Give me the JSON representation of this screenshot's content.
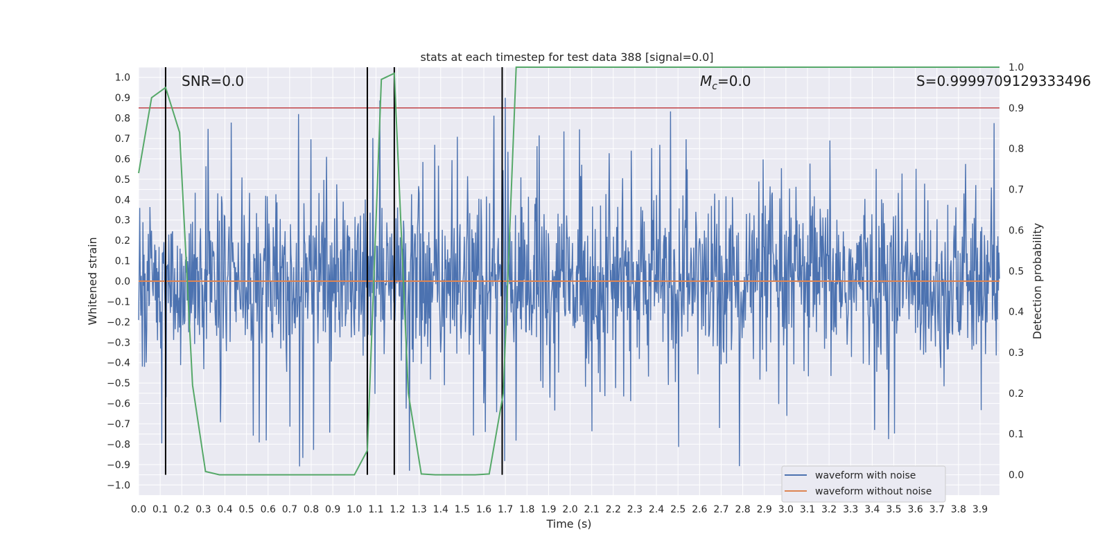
{
  "chart_data": {
    "type": "line",
    "title": "stats at each timestep for test data 388 [signal=0.0]",
    "xlabel": "Time (s)",
    "ylabel_left": "Whitened strain",
    "ylabel_right": "Detection probability",
    "xlim": [
      0.0,
      3.99
    ],
    "ylim_left": [
      -1.05,
      1.05
    ],
    "ylim_right": [
      -0.05,
      1.0
    ],
    "x_ticks": [
      "0.0",
      "0.1",
      "0.2",
      "0.3",
      "0.4",
      "0.5",
      "0.6",
      "0.7",
      "0.8",
      "0.9",
      "1.0",
      "1.1",
      "1.2",
      "1.3",
      "1.4",
      "1.5",
      "1.6",
      "1.7",
      "1.8",
      "1.9",
      "2.0",
      "2.1",
      "2.2",
      "2.3",
      "2.4",
      "2.5",
      "2.6",
      "2.7",
      "2.8",
      "2.9",
      "3.0",
      "3.1",
      "3.2",
      "3.3",
      "3.4",
      "3.5",
      "3.6",
      "3.7",
      "3.8",
      "3.9"
    ],
    "y_ticks_left": [
      "1.0",
      "0.9",
      "0.8",
      "0.7",
      "0.6",
      "0.5",
      "0.4",
      "0.3",
      "0.2",
      "0.1",
      "0.0",
      "−0.1",
      "−0.2",
      "−0.3",
      "−0.4",
      "−0.5",
      "−0.6",
      "−0.7",
      "−0.8",
      "−0.9",
      "−1.0"
    ],
    "y_ticks_right": [
      "1.0",
      "0.9",
      "0.8",
      "0.7",
      "0.6",
      "0.5",
      "0.4",
      "0.3",
      "0.2",
      "0.1",
      "0.0"
    ],
    "annotations": {
      "snr": "SNR=0.0",
      "mc_symbol": "M",
      "mc_sub": "c",
      "mc_value": "=0.0",
      "s": "S=0.9999709129333496"
    },
    "threshold": {
      "value": 0.9,
      "color": "#c44e52"
    },
    "vertical_markers": [
      0.125,
      1.06,
      1.185,
      1.685
    ],
    "noise_series": {
      "name": "waveform with noise",
      "color": "#4c72b0",
      "amplitude_typical": 0.4,
      "amplitude_max": 1.0
    },
    "clean_series": {
      "name": "waveform without noise",
      "color": "#dd8452",
      "value": 0.0
    },
    "probability_series": {
      "name": "Detection probability",
      "color": "#55a868",
      "x": [
        0.0,
        0.06,
        0.125,
        0.19,
        0.25,
        0.31,
        0.375,
        0.44,
        0.5,
        0.56,
        0.625,
        0.69,
        0.75,
        0.81,
        0.875,
        0.94,
        1.0,
        1.06,
        1.125,
        1.185,
        1.25,
        1.31,
        1.375,
        1.44,
        1.5,
        1.56,
        1.625,
        1.69,
        1.75,
        1.81,
        1.875,
        2.5,
        3.0,
        3.5,
        3.99
      ],
      "y": [
        0.74,
        0.925,
        0.95,
        0.84,
        0.22,
        0.008,
        0.0,
        0.0,
        0.0,
        0.0,
        0.0,
        0.0,
        0.0,
        0.0,
        0.0,
        0.0,
        0.0,
        0.06,
        0.97,
        0.985,
        0.2,
        0.002,
        0.0,
        0.0,
        0.0,
        0.0,
        0.002,
        0.2,
        1.0,
        1.0,
        1.0,
        1.0,
        1.0,
        1.0,
        1.0
      ]
    },
    "legend": [
      "waveform with noise",
      "waveform without noise"
    ],
    "legend_position": "lower-right",
    "grid": true
  }
}
